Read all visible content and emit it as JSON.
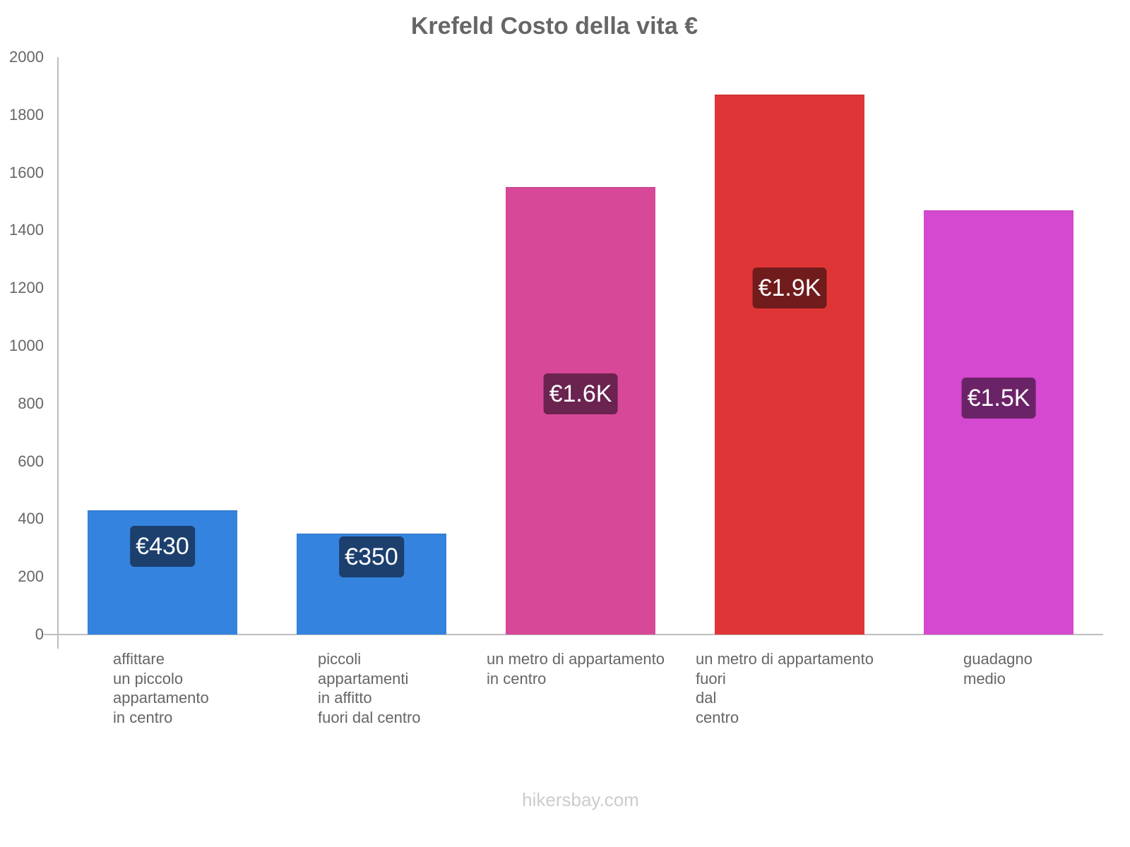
{
  "chart_data": {
    "type": "bar",
    "title": "Krefeld Costo della vita €",
    "xlabel": "",
    "ylabel": "",
    "ylim": [
      0,
      2000
    ],
    "yticks": [
      0,
      200,
      400,
      600,
      800,
      1000,
      1200,
      1400,
      1600,
      1800,
      2000
    ],
    "grid": false,
    "legend": null,
    "categories": [
      "affittare un piccolo appartamento in centro",
      "piccoli appartamenti in affitto fuori dal centro",
      "un metro di appartamento in centro",
      "un metro di appartamento fuori dal centro",
      "guadagno medio"
    ],
    "values": [
      430,
      350,
      1550,
      1870,
      1470
    ],
    "data_labels": [
      "€430",
      "€350",
      "€1.6K",
      "€1.9K",
      "€1.5K"
    ],
    "colors": [
      "#3483de",
      "#3483de",
      "#d84899",
      "#e03537",
      "#d548d0"
    ]
  },
  "title": "Krefeld Costo della vita €",
  "yticks": [
    "0",
    "200",
    "400",
    "600",
    "800",
    "1000",
    "1200",
    "1400",
    "1600",
    "1800",
    "2000"
  ],
  "bars": [
    {
      "label": "affittare\nun piccolo\nappartamento\nin centro",
      "value": 430,
      "badge": "€430",
      "color": "#3483de",
      "badge_color": "#1c3f6e"
    },
    {
      "label": "piccoli\nappartamenti\nin affitto\nfuori dal centro",
      "value": 350,
      "badge": "€350",
      "color": "#3483de",
      "badge_color": "#1c3f6e"
    },
    {
      "label": "un metro di appartamento\nin centro",
      "value": 1550,
      "badge": "€1.6K",
      "color": "#d84899",
      "badge_color": "#6b2350"
    },
    {
      "label": "un metro di appartamento\nfuori\ndal\ncentro",
      "value": 1870,
      "badge": "€1.9K",
      "color": "#e03537",
      "badge_color": "#701b1c"
    },
    {
      "label": "guadagno\nmedio",
      "value": 1470,
      "badge": "€1.5K",
      "color": "#d548d0",
      "badge_color": "#6b2368"
    }
  ],
  "watermark": "hikersbay.com"
}
